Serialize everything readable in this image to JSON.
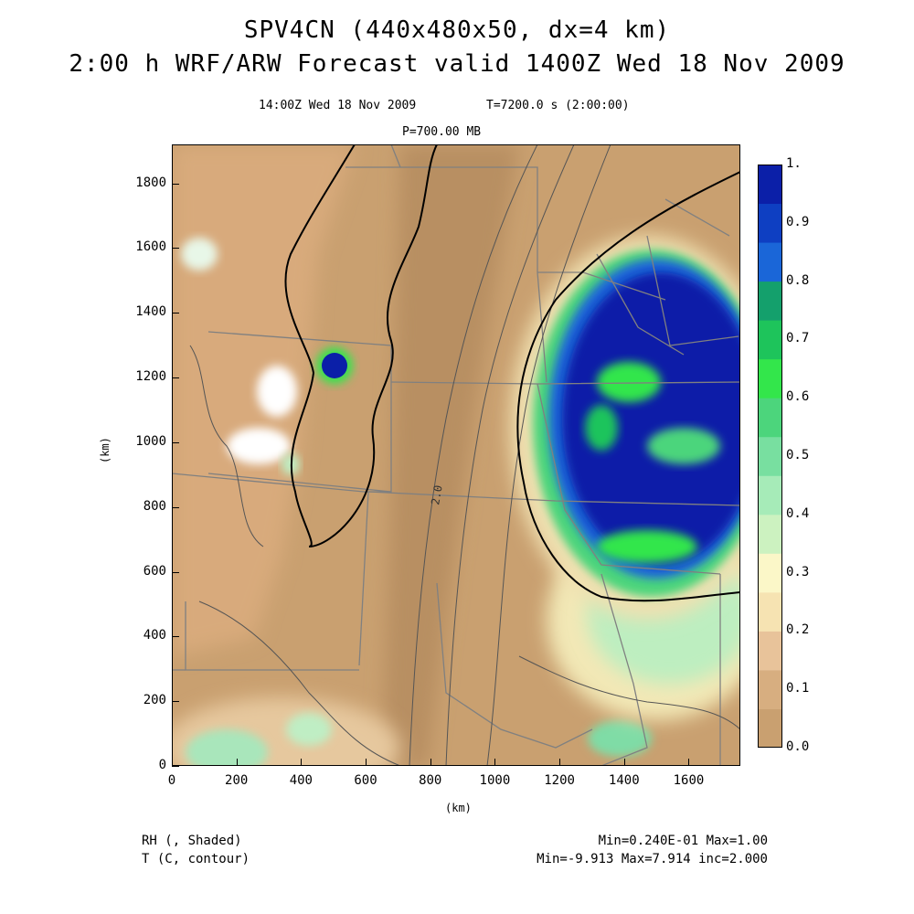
{
  "title": {
    "line1": "SPV4CN (440x480x50, dx=4 km)",
    "line2": "2:00 h WRF/ARW Forecast valid 1400Z Wed 18 Nov 2009"
  },
  "subtitle": {
    "valid": "14:00Z Wed 18 Nov 2009",
    "time": "T=7200.0 s (2:00:00)",
    "level": "P=700.00 MB"
  },
  "axes": {
    "xlabel": "(km)",
    "ylabel": "(km)",
    "xticks": [
      "0",
      "200",
      "400",
      "600",
      "800",
      "1000",
      "1200",
      "1400",
      "1600"
    ],
    "yticks": [
      "0",
      "200",
      "400",
      "600",
      "800",
      "1000",
      "1200",
      "1400",
      "1600",
      "1800"
    ],
    "xlim": [
      0,
      1760
    ],
    "ylim": [
      0,
      1920
    ]
  },
  "contour_label": "2.0",
  "colorbar": {
    "labels": [
      "0.0",
      "0.1",
      "0.2",
      "0.3",
      "0.4",
      "0.5",
      "0.6",
      "0.7",
      "0.8",
      "0.9",
      "1."
    ],
    "colors": [
      "#c9a070",
      "#d7ae80",
      "#e8c39a",
      "#f6e3b2",
      "#fbf7c8",
      "#ccf2c0",
      "#a6ebb8",
      "#78dfa0",
      "#4cd57c",
      "#33e64b",
      "#1ec45b",
      "#14a06c",
      "#1a66d8",
      "#0e3fc2",
      "#0b1fa8"
    ]
  },
  "footer": {
    "field1": "RH (, Shaded)",
    "field2": "T (C, contour)",
    "stats1": "Min=0.240E-01 Max=1.00",
    "stats2": "Min=-9.913 Max=7.914 inc=2.000"
  }
}
